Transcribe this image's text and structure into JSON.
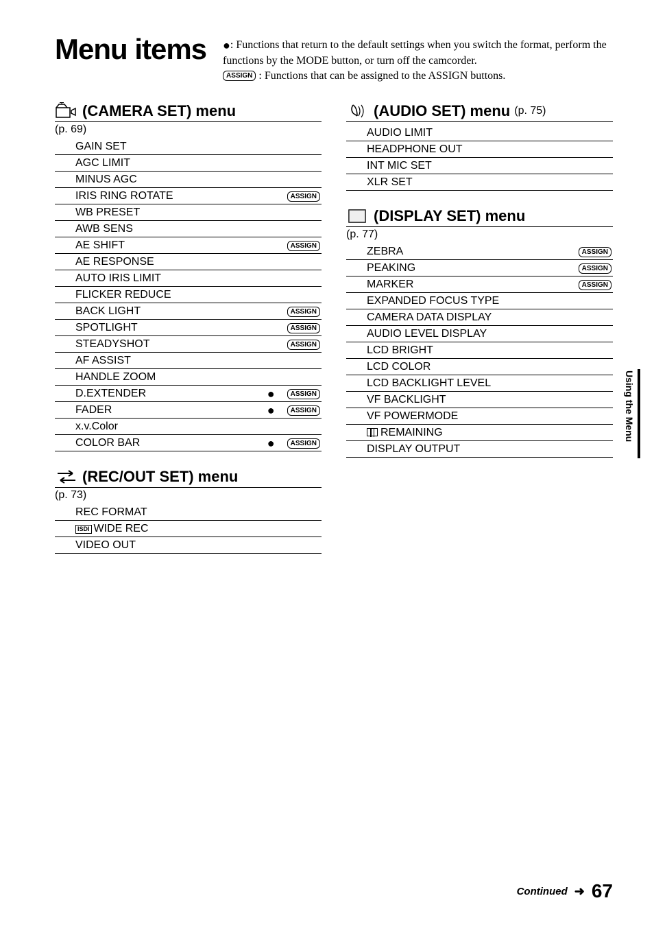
{
  "title": "Menu items",
  "intro_line1_prefix": ": Functions that return to the default settings when you switch the format, perform the functions by the MODE button, or turn off the camcorder.",
  "intro_line2_suffix": " : Functions that can be assigned to the ASSIGN buttons.",
  "assign_text": "ASSIGN",
  "sections": {
    "camera": {
      "title": " (CAMERA SET) menu",
      "pageref": "(p. 69)",
      "items": [
        {
          "label": "GAIN SET"
        },
        {
          "label": "AGC LIMIT"
        },
        {
          "label": "MINUS AGC"
        },
        {
          "label": "IRIS RING ROTATE",
          "assign": true
        },
        {
          "label": "WB PRESET"
        },
        {
          "label": "AWB SENS"
        },
        {
          "label": "AE SHIFT",
          "assign": true
        },
        {
          "label": "AE RESPONSE"
        },
        {
          "label": "AUTO IRIS LIMIT"
        },
        {
          "label": "FLICKER REDUCE"
        },
        {
          "label": "BACK LIGHT",
          "assign": true
        },
        {
          "label": "SPOTLIGHT",
          "assign": true
        },
        {
          "label": "STEADYSHOT",
          "assign": true
        },
        {
          "label": "AF ASSIST"
        },
        {
          "label": "HANDLE ZOOM"
        },
        {
          "label": "D.EXTENDER",
          "dot": true,
          "assign": true
        },
        {
          "label": "FADER",
          "dot": true,
          "assign": true
        },
        {
          "label": "x.v.Color"
        },
        {
          "label": "COLOR BAR",
          "dot": true,
          "assign": true
        }
      ]
    },
    "recout": {
      "title": " (REC/OUT SET) menu",
      "pageref": "(p. 73)",
      "items": [
        {
          "label": "REC FORMAT"
        },
        {
          "label": "WIDE REC",
          "isdi": true
        },
        {
          "label": "VIDEO OUT"
        }
      ]
    },
    "audio": {
      "title": " (AUDIO SET) menu ",
      "pageref": "(p. 75)",
      "inline_pageref": true,
      "items": [
        {
          "label": "AUDIO LIMIT"
        },
        {
          "label": "HEADPHONE OUT"
        },
        {
          "label": "INT MIC SET"
        },
        {
          "label": "XLR SET"
        }
      ]
    },
    "display": {
      "title": " (DISPLAY SET) menu",
      "pageref": "(p. 77)",
      "items": [
        {
          "label": "ZEBRA",
          "assign": true
        },
        {
          "label": "PEAKING",
          "assign": true
        },
        {
          "label": "MARKER",
          "assign": true
        },
        {
          "label": "EXPANDED FOCUS TYPE"
        },
        {
          "label": "CAMERA DATA DISPLAY"
        },
        {
          "label": "AUDIO LEVEL DISPLAY"
        },
        {
          "label": "LCD BRIGHT"
        },
        {
          "label": "LCD COLOR"
        },
        {
          "label": "LCD BACKLIGHT LEVEL"
        },
        {
          "label": "VF BACKLIGHT"
        },
        {
          "label": "VF POWERMODE"
        },
        {
          "label": "REMAINING",
          "remaining_icon": true
        },
        {
          "label": "DISPLAY OUTPUT"
        }
      ]
    }
  },
  "sidetab": "Using the Menu",
  "continued": "Continued",
  "page_number": "67",
  "isdi_text": "ISDI"
}
